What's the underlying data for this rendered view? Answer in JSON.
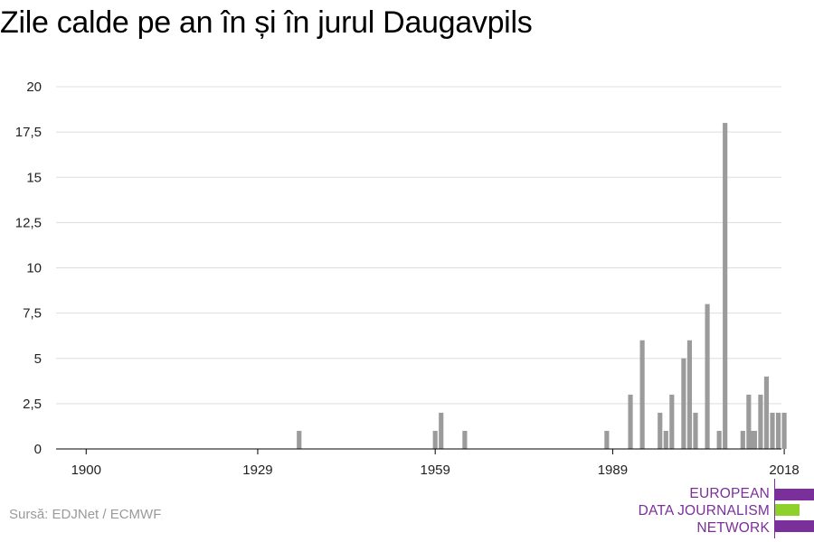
{
  "title": "Zile calde pe an în și în jurul Daugavpils",
  "source": "Sursă: EDJNet / ECMWF",
  "logo": {
    "lines": [
      "EUROPEAN",
      "DATA JOURNALISM",
      "NETWORK"
    ],
    "colors": {
      "purple": "#7b2f9a",
      "green": "#8fd12b"
    }
  },
  "colors": {
    "bar": "#9b9b9b",
    "grid": "#dddddd",
    "axis": "#000000"
  },
  "chart_data": {
    "type": "bar",
    "title": "Zile calde pe an în și în jurul Daugavpils",
    "xlabel": "",
    "ylabel": "",
    "xlim": [
      1900,
      2022
    ],
    "ylim": [
      0,
      20
    ],
    "x_ticks": [
      1900,
      1929,
      1959,
      1989,
      2018
    ],
    "y_ticks": [
      0,
      2.5,
      5,
      7.5,
      10,
      12.5,
      15,
      17.5,
      20
    ],
    "y_tick_labels": [
      "0",
      "2,5",
      "5",
      "7,5",
      "10",
      "12,5",
      "15",
      "17,5",
      "20"
    ],
    "grid": true,
    "x": [
      1936,
      1959,
      1960,
      1964,
      1988,
      1992,
      1994,
      1997,
      1998,
      1999,
      2001,
      2002,
      2003,
      2005,
      2007,
      2008,
      2011,
      2012,
      2012,
      2013,
      2014,
      2015,
      2016,
      2017,
      2018
    ],
    "values": [
      1,
      1,
      2,
      1,
      1,
      3,
      6,
      2,
      1,
      3,
      5,
      6,
      2,
      8,
      1,
      18,
      1,
      3,
      1,
      1,
      3,
      4,
      2,
      2,
      2
    ]
  }
}
